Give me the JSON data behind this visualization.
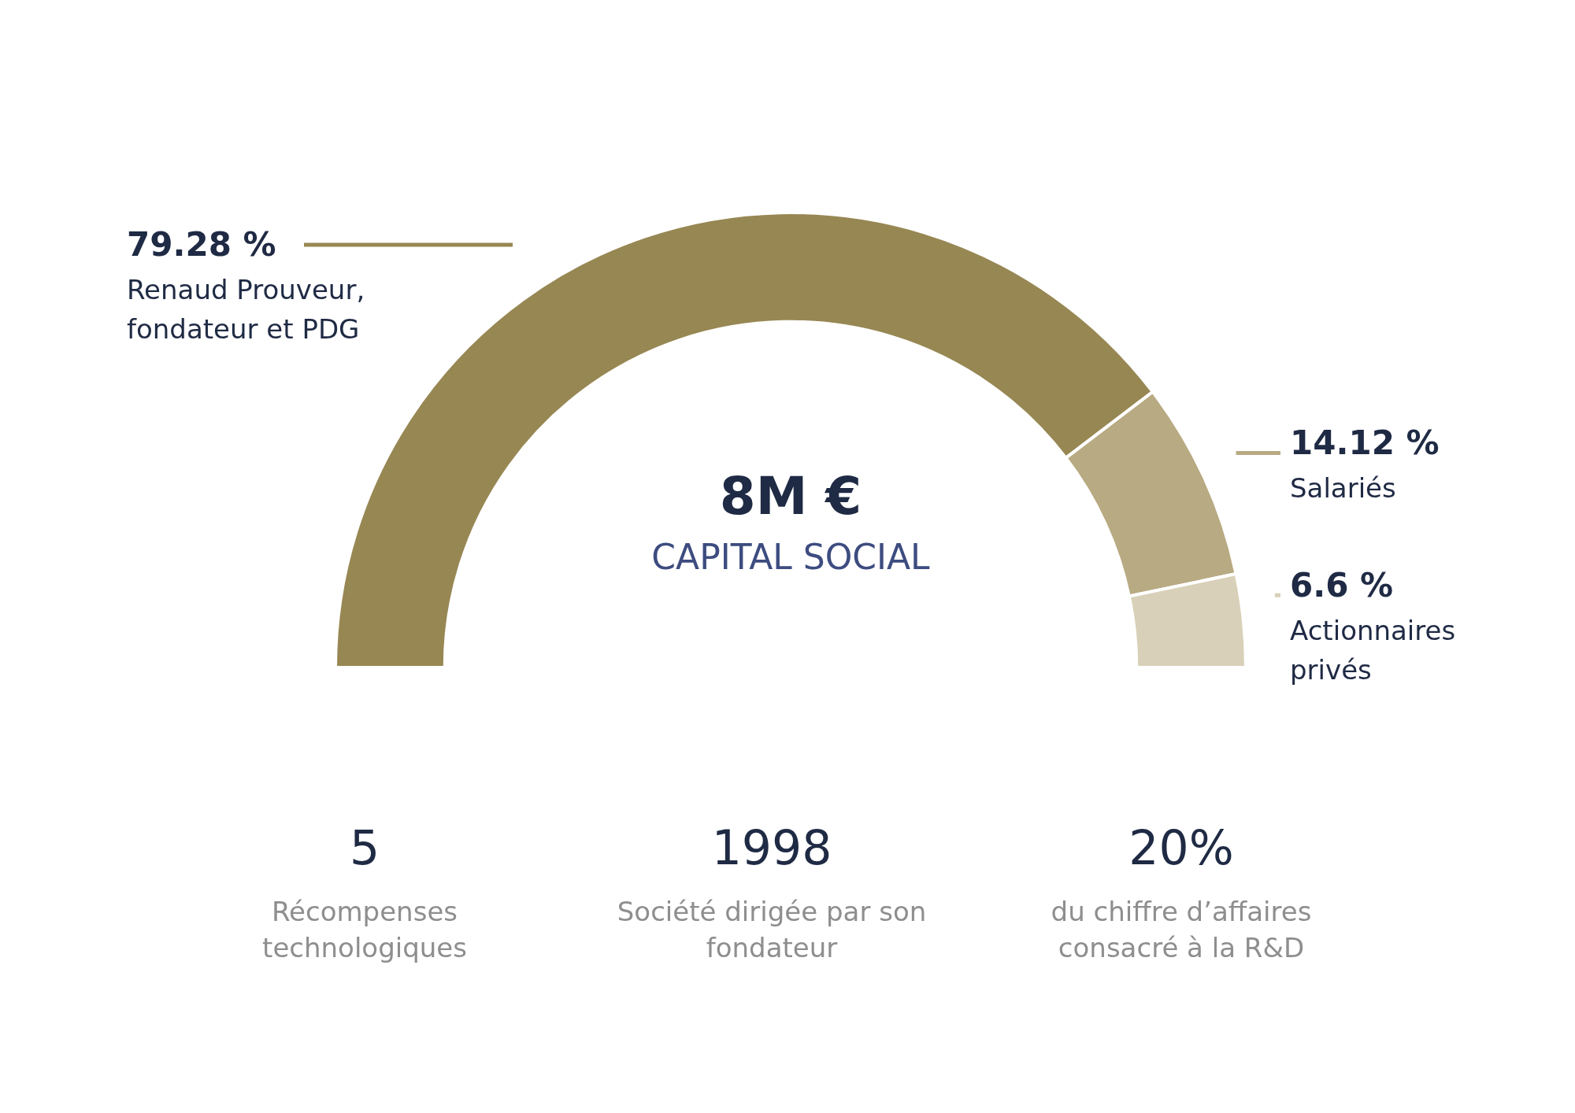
{
  "chart_data": {
    "type": "donut",
    "title": "8M €",
    "subtitle": "CAPITAL SOCIAL",
    "categories": [
      "Renaud Prouveur, fondateur et PDG",
      "Salariés",
      "Actionnaires privés"
    ],
    "values": [
      79.28,
      14.12,
      6.6
    ],
    "value_labels": [
      "79.28 %",
      "14.12 %",
      "6.6 %"
    ],
    "colors": [
      "#978753",
      "#b8aa82",
      "#d8d0b8"
    ],
    "legend": false,
    "annotations": [
      "5",
      "Récompenses technologiques",
      "1998",
      "Société dirigée par son fondateur",
      "20%",
      "du chiffre d’affaires consacré à la R&D"
    ]
  }
}
